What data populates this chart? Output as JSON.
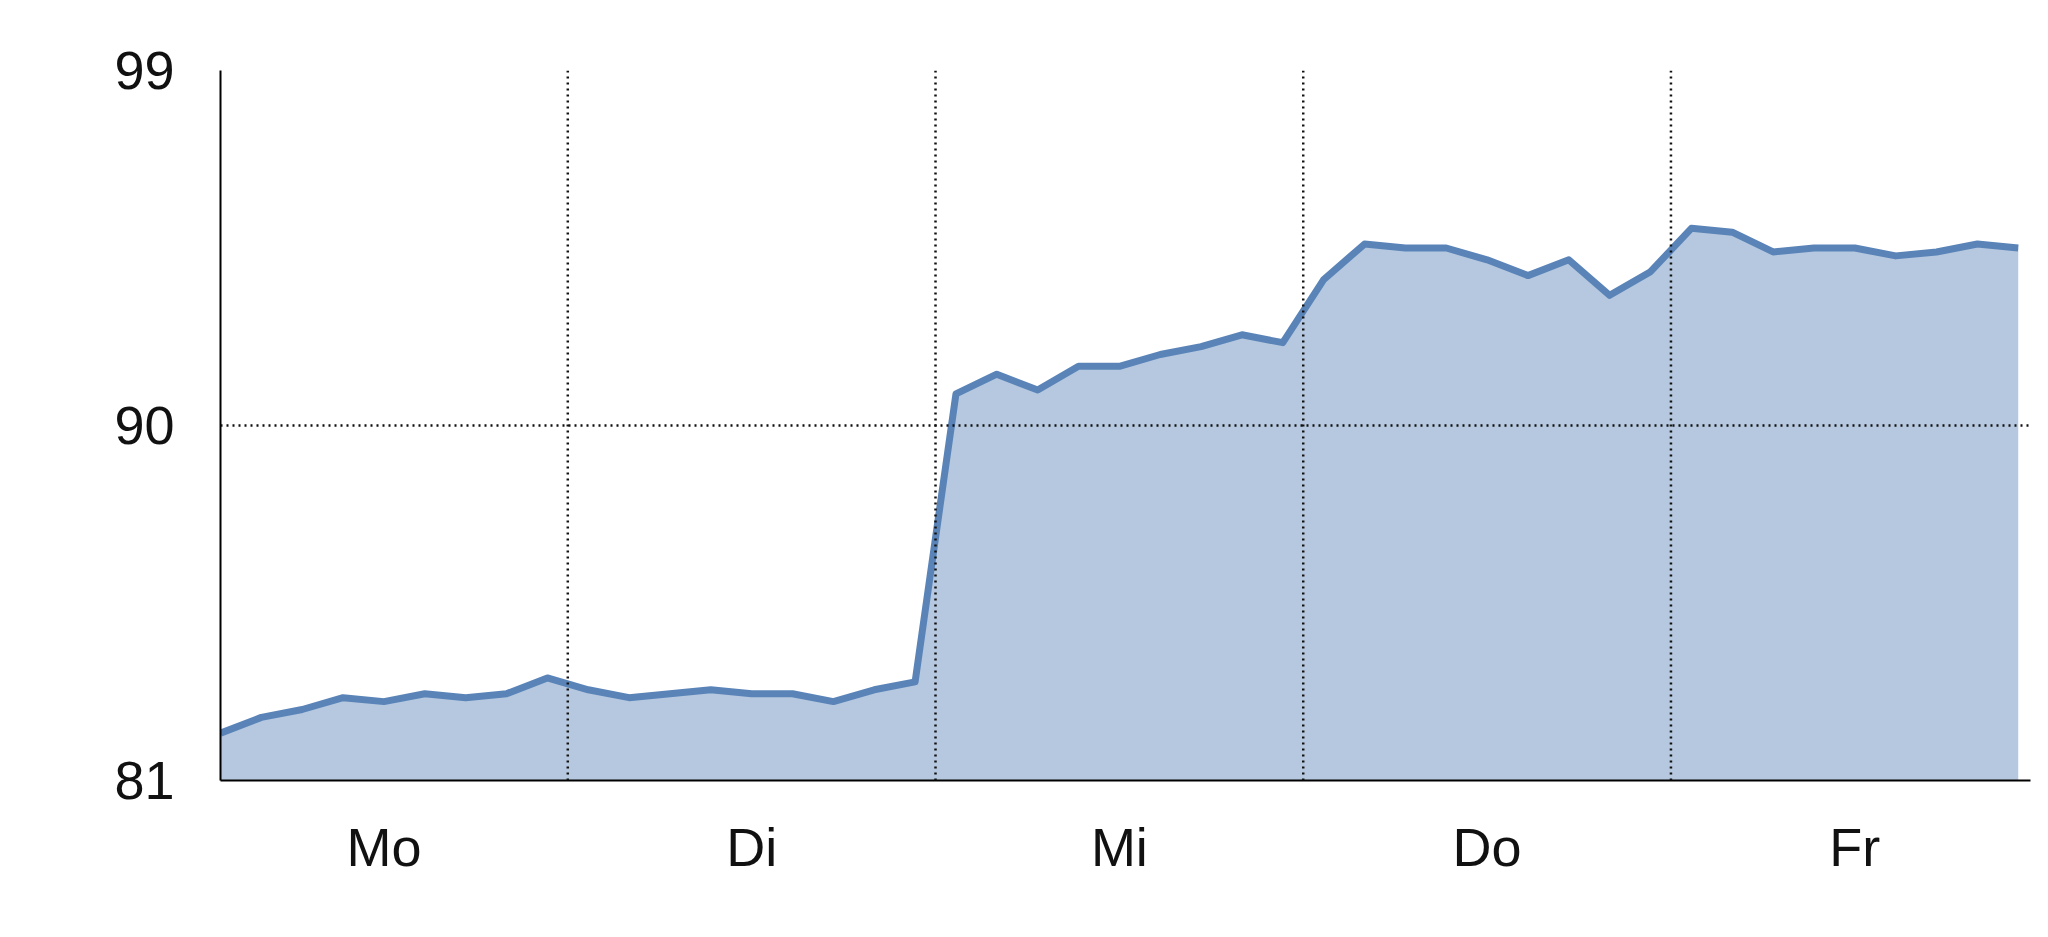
{
  "chart_data": {
    "type": "area",
    "categories": [
      null,
      null,
      null,
      null,
      "Mo",
      null,
      null,
      null,
      null,
      null,
      null,
      null,
      null,
      "Di",
      null,
      null,
      null,
      null,
      null,
      null,
      null,
      null,
      "Mi",
      null,
      null,
      null,
      null,
      null,
      null,
      null,
      null,
      "Do",
      null,
      null,
      null,
      null,
      null,
      null,
      null,
      null,
      "Fr",
      null,
      null,
      null,
      null
    ],
    "series": [
      {
        "color": "#5a84b8",
        "values": [
          82.2,
          82.6,
          82.8,
          83.1,
          83.0,
          83.2,
          83.1,
          83.2,
          83.6,
          83.3,
          83.1,
          83.2,
          83.3,
          83.2,
          83.2,
          83.0,
          83.3,
          83.5,
          90.8,
          91.3,
          90.9,
          91.5,
          91.5,
          91.8,
          92.0,
          92.3,
          92.1,
          93.7,
          94.6,
          94.5,
          94.5,
          94.2,
          93.8,
          94.2,
          93.3,
          93.9,
          95.0,
          94.9,
          94.4,
          94.5,
          94.5,
          94.3,
          94.4,
          94.6,
          94.5
        ]
      }
    ],
    "ylim": [
      81,
      99
    ],
    "yticks": [
      81,
      90,
      99
    ],
    "grid": true,
    "line_style": "solid"
  }
}
